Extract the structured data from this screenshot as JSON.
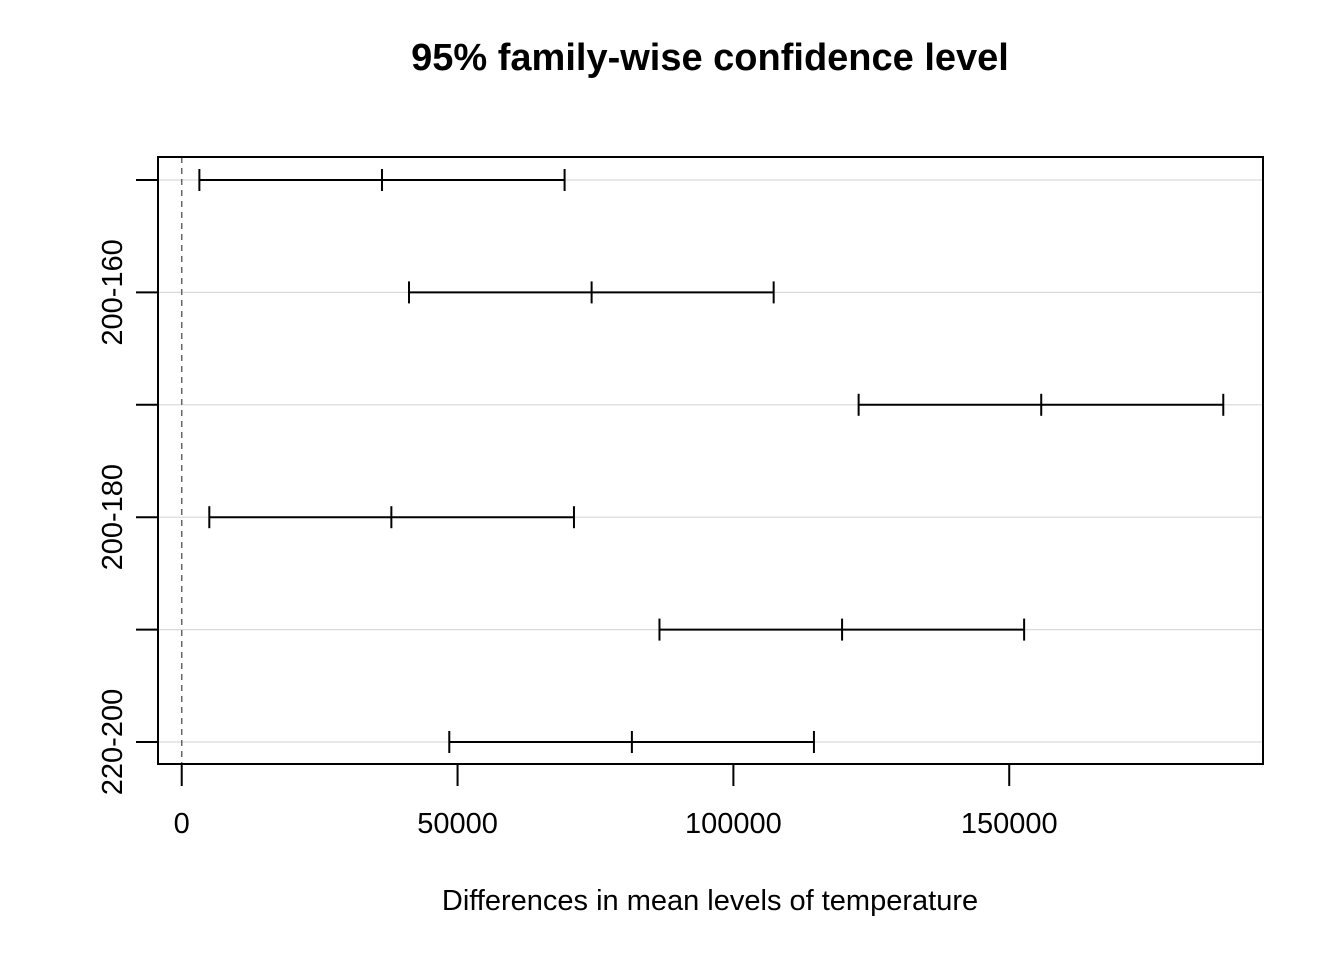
{
  "chart_data": {
    "type": "errorbar",
    "title": "95% family-wise confidence level",
    "xlabel": "Differences in mean levels of temperature",
    "ylabel": "",
    "xlim": [
      -4300,
      196000
    ],
    "x_ticks": [
      0,
      50000,
      100000,
      150000
    ],
    "x_tick_labels": [
      "0",
      "50000",
      "100000",
      "150000"
    ],
    "reference_line": 0,
    "grid": "horizontal",
    "comparisons": [
      {
        "label": "",
        "lwr": 3200,
        "diff": 36300,
        "upr": 69400
      },
      {
        "label": "200-160",
        "lwr": 41200,
        "diff": 74300,
        "upr": 107300
      },
      {
        "label": "",
        "lwr": 122700,
        "diff": 155800,
        "upr": 188800
      },
      {
        "label": "200-180",
        "lwr": 5000,
        "diff": 38000,
        "upr": 71100
      },
      {
        "label": "",
        "lwr": 86600,
        "diff": 119700,
        "upr": 152700
      },
      {
        "label": "220-200",
        "lwr": 48500,
        "diff": 81600,
        "upr": 114600
      }
    ]
  }
}
